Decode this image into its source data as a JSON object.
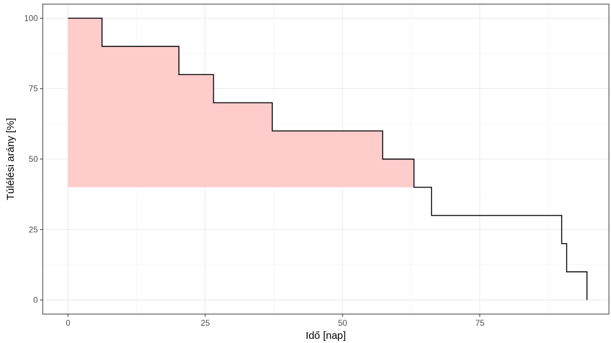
{
  "chart_data": {
    "type": "line",
    "step": true,
    "title": "",
    "xlabel": "Idő [nap]",
    "ylabel": "Túlélési arány [%]",
    "xlim": [
      -4.6,
      98.5
    ],
    "ylim": [
      -5,
      105
    ],
    "x_ticks": [
      0,
      25,
      50,
      75
    ],
    "x_tick_labels": [
      "0",
      "25",
      "50",
      "75"
    ],
    "y_ticks": [
      0,
      25,
      50,
      75,
      100
    ],
    "y_tick_labels": [
      "0",
      "25",
      "50",
      "75",
      "100"
    ],
    "grid": true,
    "legend": "none",
    "series": [
      {
        "x": [
          0,
          6.2,
          20.2,
          26.5,
          37.2,
          57.3,
          63.0,
          66.2,
          89.9,
          90.8,
          94.5
        ],
        "y": [
          100,
          90,
          80,
          70,
          60,
          50,
          40,
          30,
          20,
          10,
          0
        ],
        "color": "#000000"
      }
    ],
    "shaded_region": {
      "x_end": 63.0,
      "y_floor": 40,
      "color": "#ffcccc"
    }
  }
}
